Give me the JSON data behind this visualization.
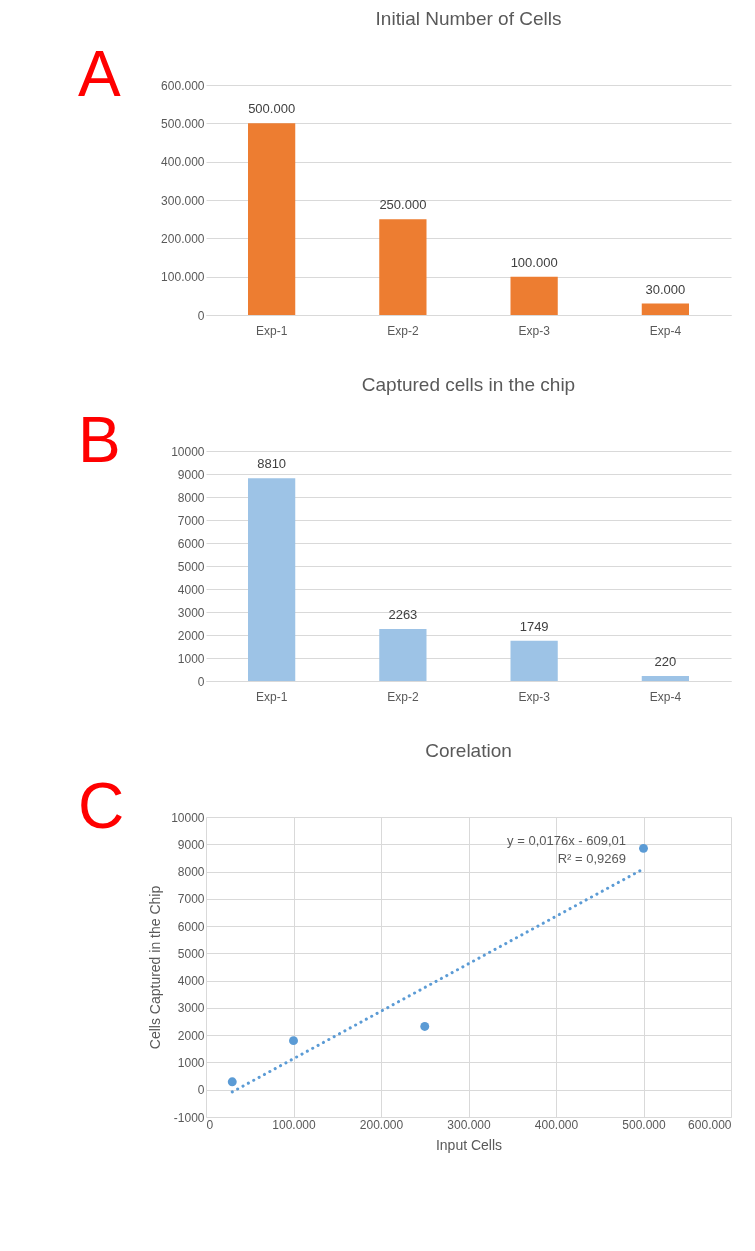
{
  "chart_data": [
    {
      "type": "bar",
      "title": "Initial Number of Cells",
      "annotations": [
        "A"
      ],
      "categories": [
        "Exp-1",
        "Exp-2",
        "Exp-3",
        "Exp-4"
      ],
      "values": [
        500000,
        250000,
        100000,
        30000
      ],
      "color": "#ed7d31",
      "value_labels": [
        "500.000",
        "250.000",
        "100.000",
        "30.000"
      ],
      "ylim": [
        0,
        600000
      ],
      "yticks": [
        0,
        {
          "value": 100000,
          "label": "100.000"
        },
        {
          "value": 200000,
          "label": "200.000"
        },
        {
          "value": 300000,
          "label": "300.000"
        },
        {
          "value": 400000,
          "label": "400.000"
        },
        {
          "value": 500000,
          "label": "500.000"
        },
        {
          "value": 600000,
          "label": "600.000"
        }
      ],
      "grid": "y"
    },
    {
      "type": "bar",
      "title": "Captured cells in the chip",
      "annotations": [
        "B"
      ],
      "categories": [
        "Exp-1",
        "Exp-2",
        "Exp-3",
        "Exp-4"
      ],
      "values": [
        8810,
        2263,
        1749,
        220
      ],
      "color": "#9dc3e6",
      "data_labels": true,
      "ylim": [
        0,
        10000
      ],
      "yticks": [
        0,
        1000,
        2000,
        3000,
        4000,
        5000,
        6000,
        7000,
        8000,
        9000,
        10000
      ],
      "grid": "y"
    },
    {
      "type": "scatter",
      "title": "Corelation",
      "xlabel": "Input Cells",
      "ylabel": "Cells Captured in the Chip",
      "annotations": [
        "C",
        "y = 0,0176x - 609,01",
        "R² = 0,9269"
      ],
      "series": [
        {
          "type": "scatter",
          "color": "#5b9bd5",
          "marker": "circle",
          "x": [
            30000,
            100000,
            250000,
            500000
          ],
          "values": [
            290,
            1800,
            2320,
            8850
          ]
        },
        {
          "type": "line",
          "color": "#5b9bd5",
          "line_style": "dotted",
          "x": [
            30000,
            500000
          ],
          "values": [
            -80,
            8100
          ]
        }
      ],
      "xlim": [
        0,
        600000
      ],
      "xticks": [
        0,
        {
          "value": 100000,
          "label": "100.000"
        },
        {
          "value": 200000,
          "label": "200.000"
        },
        {
          "value": 300000,
          "label": "300.000"
        },
        {
          "value": 400000,
          "label": "400.000"
        },
        {
          "value": 500000,
          "label": "500.000"
        },
        {
          "value": 600000,
          "label": "600.000"
        }
      ],
      "ylim": [
        -1000,
        10000
      ],
      "yticks": [
        -1000,
        0,
        1000,
        2000,
        3000,
        4000,
        5000,
        6000,
        7000,
        8000,
        9000,
        10000
      ],
      "grid": true
    }
  ]
}
